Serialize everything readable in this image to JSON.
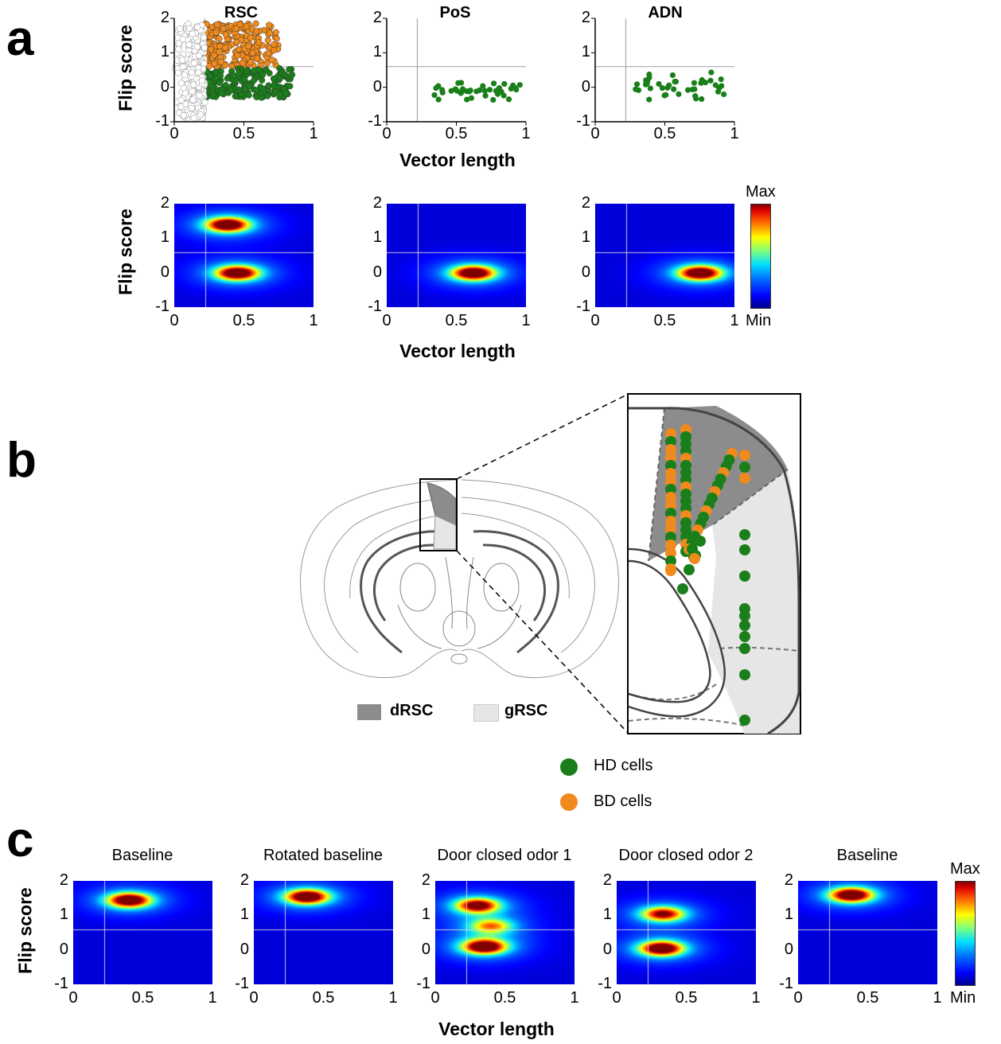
{
  "panels": {
    "a": "a",
    "b": "b",
    "c": "c"
  },
  "common": {
    "ylabel": "Flip score",
    "xlabel": "Vector length",
    "x_ticks": [
      "0",
      "0.5",
      "1"
    ],
    "y_ticks": [
      "2",
      "1",
      "0",
      "-1"
    ],
    "colorbar_max": "Max",
    "colorbar_min": "Min"
  },
  "scatter_titles": [
    "RSC",
    "PoS",
    "ADN"
  ],
  "legend_b": {
    "drsc": "dRSC",
    "grsc": "gRSC",
    "hd": "HD cells",
    "bd": "BD cells"
  },
  "heatmap_c_titles": [
    "Baseline",
    "Rotated baseline",
    "Door closed odor 1",
    "Door closed odor 2",
    "Baseline"
  ],
  "colors": {
    "hd": "#1a7f1a",
    "bd": "#f08a1c",
    "drsc": "#8c8c8c",
    "grsc": "#e6e6e6"
  },
  "chart_data": [
    {
      "type": "scatter",
      "panel": "a",
      "title": "RSC",
      "xlabel": "Vector length",
      "ylabel": "Flip score",
      "xlim": [
        0,
        1
      ],
      "ylim": [
        -1,
        2
      ],
      "thresholds": {
        "vector_length": 0.22,
        "flip_score": 0.6
      },
      "series": [
        {
          "name": "BD cells",
          "color": "#f08a1c",
          "x_range": [
            0.22,
            0.75
          ],
          "y_range": [
            0.6,
            1.85
          ]
        },
        {
          "name": "HD cells",
          "color": "#1a7f1a",
          "x_range": [
            0.22,
            0.85
          ],
          "y_range": [
            -0.3,
            0.55
          ]
        },
        {
          "color": "#ffffff",
          "x_range": [
            0.0,
            0.22
          ],
          "y_range": [
            -0.9,
            1.85
          ]
        }
      ]
    },
    {
      "type": "scatter",
      "panel": "a",
      "title": "PoS",
      "xlabel": "Vector length",
      "ylabel": "Flip score",
      "xlim": [
        0,
        1
      ],
      "ylim": [
        -1,
        2
      ],
      "thresholds": {
        "vector_length": 0.22,
        "flip_score": 0.6
      },
      "series": [
        {
          "name": "HD cells",
          "color": "#1a7f1a",
          "x_range": [
            0.28,
            0.96
          ],
          "y_range": [
            -0.45,
            0.25
          ]
        }
      ]
    },
    {
      "type": "scatter",
      "panel": "a",
      "title": "ADN",
      "xlabel": "Vector length",
      "ylabel": "Flip score",
      "xlim": [
        0,
        1
      ],
      "ylim": [
        -1,
        2
      ],
      "thresholds": {
        "vector_length": 0.22,
        "flip_score": 0.6
      },
      "series": [
        {
          "name": "HD cells",
          "color": "#1a7f1a",
          "x_range": [
            0.27,
            0.95
          ],
          "y_range": [
            -0.5,
            0.55
          ]
        }
      ]
    },
    {
      "type": "heatmap",
      "panel": "a",
      "region": "RSC",
      "xlim": [
        0,
        1
      ],
      "ylim": [
        -1,
        2
      ],
      "peaks": [
        {
          "x": 0.38,
          "y": 1.4,
          "w": 1.0
        },
        {
          "x": 0.45,
          "y": 0.0,
          "w": 1.0
        }
      ]
    },
    {
      "type": "heatmap",
      "panel": "a",
      "region": "PoS",
      "xlim": [
        0,
        1
      ],
      "ylim": [
        -1,
        2
      ],
      "peaks": [
        {
          "x": 0.62,
          "y": 0.0,
          "w": 1.0
        }
      ]
    },
    {
      "type": "heatmap",
      "panel": "a",
      "region": "ADN",
      "xlim": [
        0,
        1
      ],
      "ylim": [
        -1,
        2
      ],
      "peaks": [
        {
          "x": 0.75,
          "y": 0.0,
          "w": 1.0
        }
      ]
    },
    {
      "type": "heatmap",
      "panel": "c",
      "title": "Baseline",
      "xlim": [
        0,
        1
      ],
      "ylim": [
        -1,
        2
      ],
      "peaks": [
        {
          "x": 0.4,
          "y": 1.45,
          "w": 1.0
        }
      ]
    },
    {
      "type": "heatmap",
      "panel": "c",
      "title": "Rotated baseline",
      "xlim": [
        0,
        1
      ],
      "ylim": [
        -1,
        2
      ],
      "peaks": [
        {
          "x": 0.38,
          "y": 1.55,
          "w": 1.0
        }
      ]
    },
    {
      "type": "heatmap",
      "panel": "c",
      "title": "Door closed odor 1",
      "xlim": [
        0,
        1
      ],
      "ylim": [
        -1,
        2
      ],
      "peaks": [
        {
          "x": 0.3,
          "y": 1.3,
          "w": 0.9
        },
        {
          "x": 0.35,
          "y": 0.1,
          "w": 1.0
        },
        {
          "x": 0.4,
          "y": 0.7,
          "w": 0.6
        }
      ]
    },
    {
      "type": "heatmap",
      "panel": "c",
      "title": "Door closed odor 2",
      "xlim": [
        0,
        1
      ],
      "ylim": [
        -1,
        2
      ],
      "peaks": [
        {
          "x": 0.33,
          "y": 1.05,
          "w": 0.85
        },
        {
          "x": 0.32,
          "y": 0.05,
          "w": 1.0
        }
      ]
    },
    {
      "type": "heatmap",
      "panel": "c",
      "title": "Baseline",
      "xlim": [
        0,
        1
      ],
      "ylim": [
        -1,
        2
      ],
      "peaks": [
        {
          "x": 0.38,
          "y": 1.6,
          "w": 1.0
        }
      ]
    }
  ]
}
